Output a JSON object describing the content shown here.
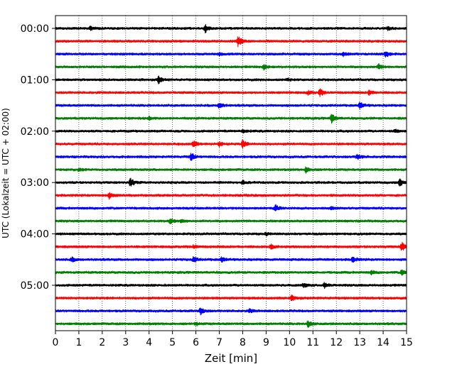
{
  "chart_data": {
    "type": "line",
    "title": "",
    "xlabel": "Zeit  [min]",
    "ylabel": "UTC (Lokalzeit = UTC + 02:00)",
    "xlim": [
      0,
      15
    ],
    "x_ticks": [
      "0",
      "1",
      "2",
      "3",
      "4",
      "5",
      "6",
      "7",
      "8",
      "9",
      "10",
      "11",
      "12",
      "13",
      "14",
      "15"
    ],
    "y_tick_labels": [
      "00:00",
      "01:00",
      "02:00",
      "03:00",
      "04:00",
      "05:00"
    ],
    "y_tick_rows": [
      0,
      4,
      8,
      12,
      16,
      20
    ],
    "grid": "vertical dotted at each minute",
    "row_minutes": 15,
    "row_colors": [
      "#000000",
      "#ff0000",
      "#0000ff",
      "#008000"
    ],
    "rows": [
      {
        "start": "00:00",
        "color": "#000000",
        "spikes": [
          {
            "x": 6.4,
            "amp": 1.0
          },
          {
            "x": 1.5,
            "amp": 0.4
          },
          {
            "x": 14.2,
            "amp": 0.4
          }
        ]
      },
      {
        "start": "00:15",
        "color": "#ff0000",
        "spikes": [
          {
            "x": 7.8,
            "amp": 1.2
          }
        ]
      },
      {
        "start": "00:30",
        "color": "#0000ff",
        "spikes": [
          {
            "x": 14.1,
            "amp": 0.8
          },
          {
            "x": 12.3,
            "amp": 0.5
          },
          {
            "x": 7.0,
            "amp": 0.3
          }
        ]
      },
      {
        "start": "00:45",
        "color": "#008000",
        "spikes": [
          {
            "x": 8.9,
            "amp": 0.6
          },
          {
            "x": 13.8,
            "amp": 0.6
          }
        ]
      },
      {
        "start": "01:00",
        "color": "#000000",
        "spikes": [
          {
            "x": 4.4,
            "amp": 0.9
          },
          {
            "x": 9.9,
            "amp": 0.3
          }
        ]
      },
      {
        "start": "01:15",
        "color": "#ff0000",
        "spikes": [
          {
            "x": 11.3,
            "amp": 0.8
          },
          {
            "x": 13.4,
            "amp": 0.6
          },
          {
            "x": 10.8,
            "amp": 0.4
          }
        ]
      },
      {
        "start": "01:30",
        "color": "#0000ff",
        "spikes": [
          {
            "x": 7.0,
            "amp": 0.7
          },
          {
            "x": 13.0,
            "amp": 0.8
          }
        ]
      },
      {
        "start": "01:45",
        "color": "#008000",
        "spikes": [
          {
            "x": 11.8,
            "amp": 1.0
          },
          {
            "x": 4.0,
            "amp": 0.3
          }
        ]
      },
      {
        "start": "02:00",
        "color": "#000000",
        "spikes": [
          {
            "x": 8.0,
            "amp": 0.4
          },
          {
            "x": 14.5,
            "amp": 0.3
          }
        ]
      },
      {
        "start": "02:15",
        "color": "#ff0000",
        "spikes": [
          {
            "x": 5.9,
            "amp": 0.8
          },
          {
            "x": 8.0,
            "amp": 0.9
          },
          {
            "x": 7.0,
            "amp": 0.5
          }
        ]
      },
      {
        "start": "02:30",
        "color": "#0000ff",
        "spikes": [
          {
            "x": 5.8,
            "amp": 0.9
          },
          {
            "x": 12.9,
            "amp": 0.6
          }
        ]
      },
      {
        "start": "02:45",
        "color": "#008000",
        "spikes": [
          {
            "x": 10.7,
            "amp": 0.7
          },
          {
            "x": 1.0,
            "amp": 0.3
          }
        ]
      },
      {
        "start": "03:00",
        "color": "#000000",
        "spikes": [
          {
            "x": 3.2,
            "amp": 1.0
          },
          {
            "x": 14.7,
            "amp": 0.9
          },
          {
            "x": 8.0,
            "amp": 0.4
          }
        ]
      },
      {
        "start": "03:15",
        "color": "#ff0000",
        "spikes": [
          {
            "x": 2.3,
            "amp": 0.8
          }
        ]
      },
      {
        "start": "03:30",
        "color": "#0000ff",
        "spikes": [
          {
            "x": 9.4,
            "amp": 0.7
          },
          {
            "x": 11.8,
            "amp": 0.3
          }
        ]
      },
      {
        "start": "03:45",
        "color": "#008000",
        "spikes": [
          {
            "x": 4.9,
            "amp": 0.6
          },
          {
            "x": 5.4,
            "amp": 0.4
          }
        ]
      },
      {
        "start": "04:00",
        "color": "#000000",
        "spikes": [
          {
            "x": 9.0,
            "amp": 0.3
          }
        ]
      },
      {
        "start": "04:15",
        "color": "#ff0000",
        "spikes": [
          {
            "x": 14.8,
            "amp": 1.1
          },
          {
            "x": 9.2,
            "amp": 0.5
          },
          {
            "x": 5.9,
            "amp": 0.4
          }
        ]
      },
      {
        "start": "04:30",
        "color": "#0000ff",
        "spikes": [
          {
            "x": 12.7,
            "amp": 0.8
          },
          {
            "x": 5.9,
            "amp": 0.6
          },
          {
            "x": 7.1,
            "amp": 0.6
          },
          {
            "x": 0.7,
            "amp": 0.5
          }
        ]
      },
      {
        "start": "04:45",
        "color": "#008000",
        "spikes": [
          {
            "x": 14.8,
            "amp": 0.6
          },
          {
            "x": 13.5,
            "amp": 0.4
          }
        ]
      },
      {
        "start": "05:00",
        "color": "#000000",
        "spikes": [
          {
            "x": 11.5,
            "amp": 0.6
          },
          {
            "x": 10.6,
            "amp": 0.5
          }
        ]
      },
      {
        "start": "05:15",
        "color": "#ff0000",
        "spikes": [
          {
            "x": 10.1,
            "amp": 0.6
          }
        ]
      },
      {
        "start": "05:30",
        "color": "#0000ff",
        "spikes": [
          {
            "x": 6.2,
            "amp": 0.8
          },
          {
            "x": 8.3,
            "amp": 0.4
          }
        ]
      },
      {
        "start": "05:45",
        "color": "#008000",
        "spikes": [
          {
            "x": 10.8,
            "amp": 0.8
          },
          {
            "x": 6.0,
            "amp": 0.3
          }
        ]
      }
    ]
  }
}
